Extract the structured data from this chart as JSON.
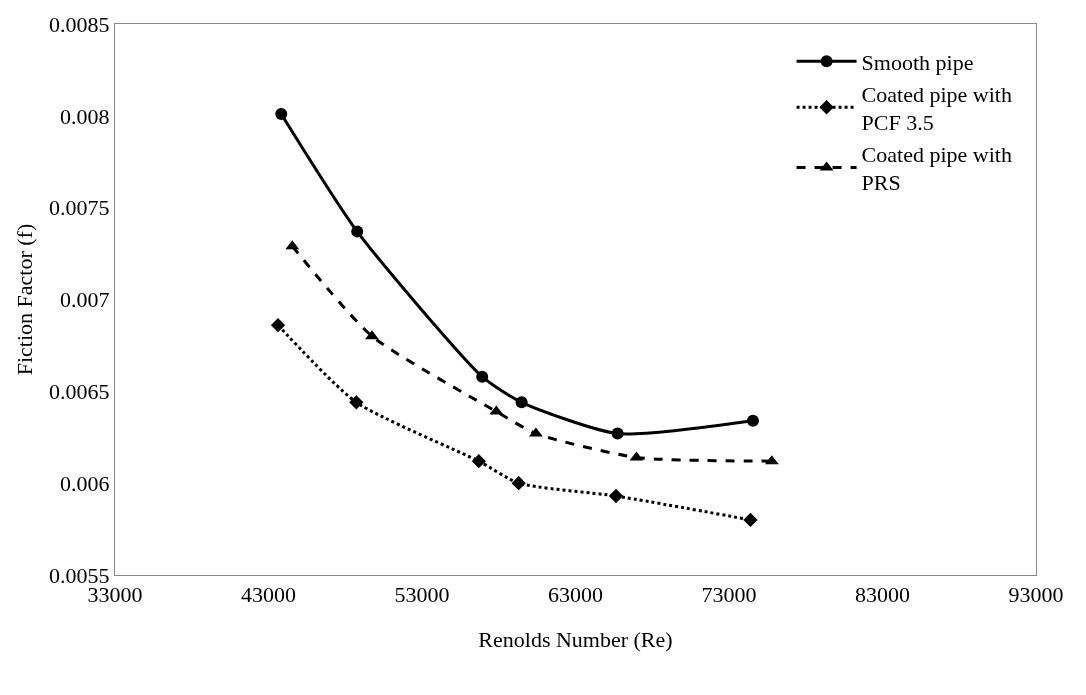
{
  "chart_data": {
    "type": "line",
    "xlabel": "Renolds Number (Re)",
    "ylabel": "Fiction Factor (f)",
    "xlim": [
      33000,
      93000
    ],
    "xticks": [
      33000,
      43000,
      53000,
      63000,
      73000,
      83000,
      93000
    ],
    "ylim": [
      0.0055,
      0.0085
    ],
    "yticks": [
      0.0055,
      0.006,
      0.0065,
      0.007,
      0.0075,
      0.008,
      0.0085
    ],
    "grid": false,
    "legend": "top right",
    "series": [
      {
        "name": "Smooth pipe",
        "color": "#000000",
        "marker": "circle",
        "line_style": "solid",
        "x": [
          43830,
          48780,
          56920,
          59490,
          65740,
          74560
        ],
        "values": [
          0.00801,
          0.00737,
          0.00658,
          0.00644,
          0.00627,
          0.00634
        ]
      },
      {
        "name": "Coated pipe with PCF 3.5",
        "color": "#000000",
        "marker": "diamond",
        "line_style": "dotted",
        "x": [
          43620,
          48720,
          56700,
          59300,
          65640,
          74400
        ],
        "values": [
          0.00686,
          0.00644,
          0.00612,
          0.006,
          0.00593,
          0.0058
        ]
      },
      {
        "name": "Coated pipe with PRS",
        "color": "#000000",
        "marker": "triangle",
        "line_style": "dashed",
        "x": [
          44550,
          49740,
          57840,
          60420,
          66970,
          75790
        ],
        "values": [
          0.00729,
          0.0068,
          0.00639,
          0.00627,
          0.00614,
          0.00612
        ]
      }
    ]
  }
}
